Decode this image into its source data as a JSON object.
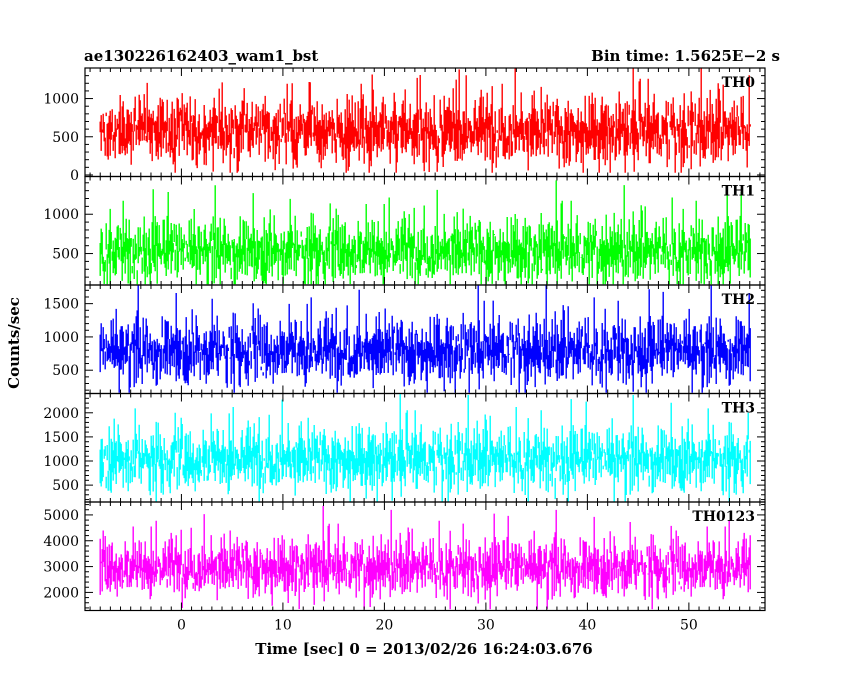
{
  "header": {
    "title": "ae130226162403_wam1_bst",
    "bin_time": "Bin time: 1.5625E−2 s"
  },
  "axes": {
    "xlabel": "Time [sec] 0 = 2013/02/26 16:24:03.676",
    "ylabel": "Counts/sec"
  },
  "chart_data": {
    "type": "line",
    "x_range": [
      -8,
      56
    ],
    "xlim": [
      -9.5,
      57.5
    ],
    "x_ticks": [
      0,
      10,
      20,
      30,
      40,
      50
    ],
    "x_tick_labels": [
      "0",
      "10",
      "20",
      "30",
      "40",
      "50"
    ],
    "bin_size_s": 0.015625,
    "grid": false,
    "series": [
      {
        "name": "TH0",
        "color": "#ff0000",
        "ylim": [
          -20,
          1400
        ],
        "y_ticks": [
          0,
          500,
          1000
        ],
        "y_tick_labels": [
          "0",
          "500",
          "1000"
        ],
        "mean": 580,
        "noise_sd": 210,
        "min_clip": 30,
        "max_clip": 1400
      },
      {
        "name": "TH1",
        "color": "#00ff00",
        "ylim": [
          100,
          1480
        ],
        "y_ticks": [
          500,
          1000
        ],
        "y_tick_labels": [
          "500",
          "1000"
        ],
        "mean": 540,
        "noise_sd": 195,
        "min_clip": 110,
        "max_clip": 1480
      },
      {
        "name": "TH2",
        "color": "#0000ff",
        "ylim": [
          150,
          1780
        ],
        "y_ticks": [
          500,
          1000,
          1500
        ],
        "y_tick_labels": [
          "500",
          "1000",
          "1500"
        ],
        "mean": 800,
        "noise_sd": 230,
        "min_clip": 160,
        "max_clip": 1780
      },
      {
        "name": "TH3",
        "color": "#00ffff",
        "ylim": [
          150,
          2400
        ],
        "y_ticks": [
          500,
          1000,
          1500,
          2000
        ],
        "y_tick_labels": [
          "500",
          "1000",
          "1500",
          "2000"
        ],
        "mean": 1050,
        "noise_sd": 310,
        "min_clip": 160,
        "max_clip": 2400
      },
      {
        "name": "TH0123",
        "color": "#ff00ff",
        "ylim": [
          1300,
          5500
        ],
        "y_ticks": [
          2000,
          3000,
          4000,
          5000
        ],
        "y_tick_labels": [
          "2000",
          "3000",
          "4000",
          "5000"
        ],
        "mean": 2980,
        "noise_sd": 520,
        "min_clip": 1350,
        "max_clip": 5500
      }
    ]
  }
}
